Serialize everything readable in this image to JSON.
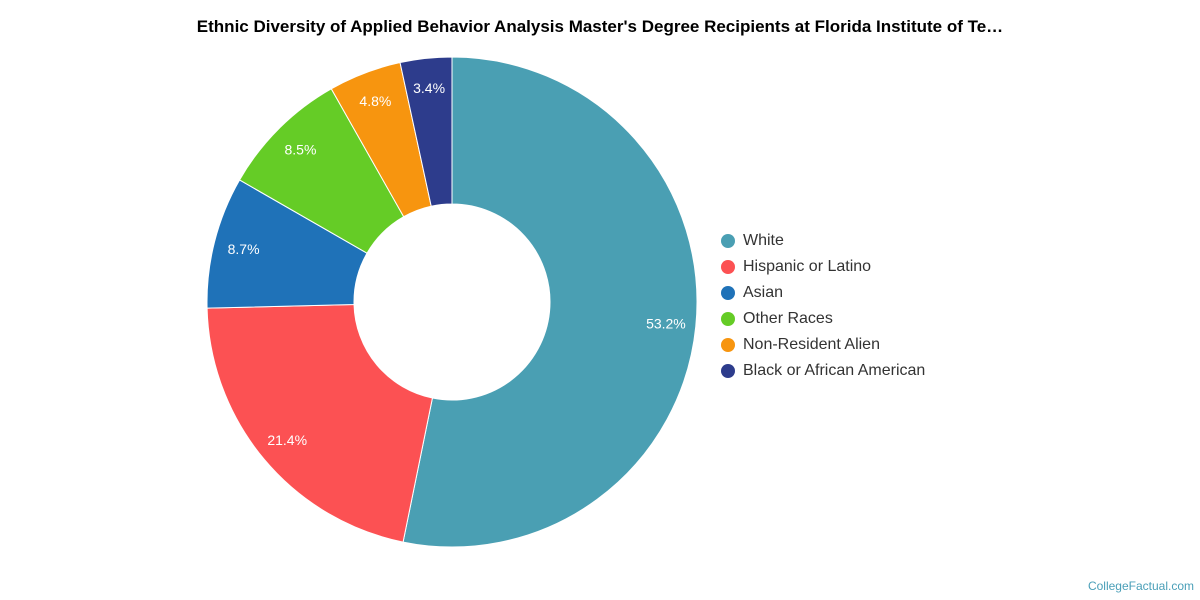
{
  "chart_data": {
    "type": "pie",
    "title": "Ethnic Diversity of Applied Behavior Analysis Master's Degree Recipients at Florida Institute of Te…",
    "donut": true,
    "legend_placement": "right",
    "slices": [
      {
        "label": "White",
        "value": 53.2,
        "value_label": "53.2%",
        "color": "#4a9fb3"
      },
      {
        "label": "Hispanic or Latino",
        "value": 21.4,
        "value_label": "21.4%",
        "color": "#fc5153"
      },
      {
        "label": "Asian",
        "value": 8.7,
        "value_label": "8.7%",
        "color": "#1f72b8"
      },
      {
        "label": "Other Races",
        "value": 8.5,
        "value_label": "8.5%",
        "color": "#65cc26"
      },
      {
        "label": "Non-Resident Alien",
        "value": 4.8,
        "value_label": "4.8%",
        "color": "#f7950f"
      },
      {
        "label": "Black or African American",
        "value": 3.4,
        "value_label": "3.4%",
        "color": "#2d3c8c"
      }
    ]
  },
  "watermark": "CollegeFactual.com"
}
